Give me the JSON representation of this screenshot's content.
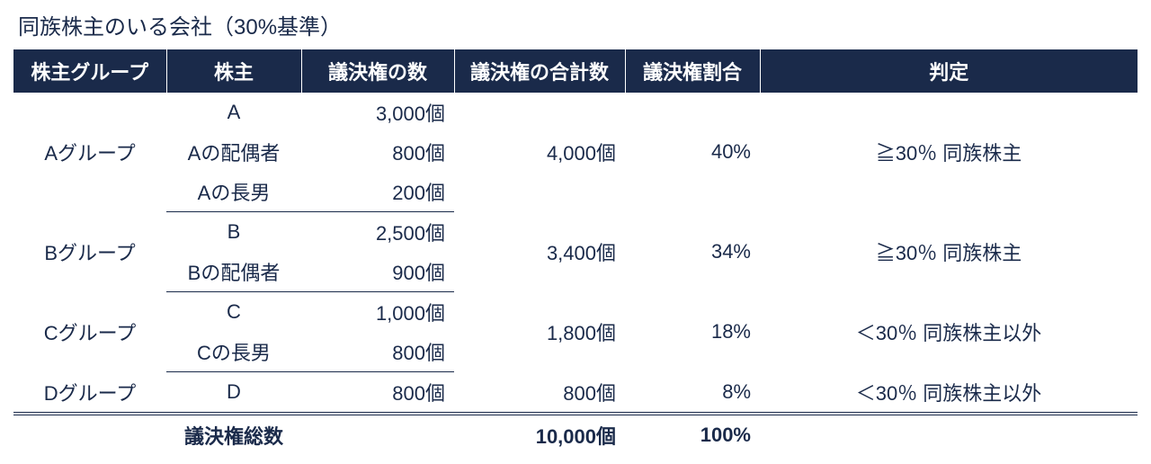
{
  "title": "同族株主のいる会社（30%基準）",
  "headers": {
    "group": "株主グループ",
    "holder": "株主",
    "votes": "議決権の数",
    "total": "議決権の合計数",
    "ratio": "議決権割合",
    "judgment": "判定"
  },
  "groups": [
    {
      "name": "Aグループ",
      "members": [
        {
          "holder": "A",
          "votes": "3,000個"
        },
        {
          "holder": "Aの配偶者",
          "votes": "800個"
        },
        {
          "holder": "Aの長男",
          "votes": "200個"
        }
      ],
      "total": "4,000個",
      "ratio": "40%",
      "judgment": "≧30％ 同族株主"
    },
    {
      "name": "Bグループ",
      "members": [
        {
          "holder": "B",
          "votes": "2,500個"
        },
        {
          "holder": "Bの配偶者",
          "votes": "900個"
        }
      ],
      "total": "3,400個",
      "ratio": "34%",
      "judgment": "≧30％ 同族株主"
    },
    {
      "name": "Cグループ",
      "members": [
        {
          "holder": "C",
          "votes": "1,000個"
        },
        {
          "holder": "Cの長男",
          "votes": "800個"
        }
      ],
      "total": "1,800個",
      "ratio": "18%",
      "judgment": "＜30％ 同族株主以外"
    },
    {
      "name": "Dグループ",
      "members": [
        {
          "holder": "D",
          "votes": "800個"
        }
      ],
      "total": "800個",
      "ratio": "8%",
      "judgment": "＜30％ 同族株主以外"
    }
  ],
  "footer": {
    "label": "議決権総数",
    "total": "10,000個",
    "ratio": "100%"
  },
  "style": {
    "header_bg": "#1a2a4a",
    "header_fg": "#ffffff",
    "text_color": "#1a2a4a",
    "border_color": "#1a2a4a",
    "background": "#ffffff",
    "title_fontsize": 24,
    "header_fontsize": 22,
    "cell_fontsize": 22
  }
}
